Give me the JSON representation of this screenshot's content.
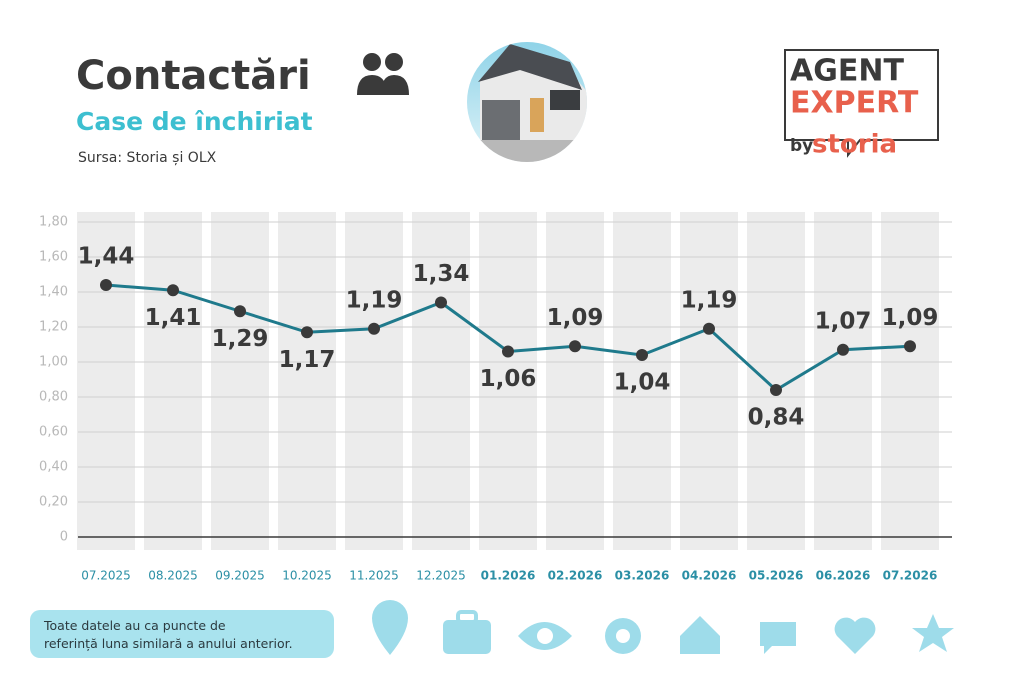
{
  "chart_data": {
    "type": "line",
    "title": "Contactări",
    "subtitle": "Case de închiriat",
    "source": "Sursa: Storia și OLX",
    "note": "Toate datele au ca puncte de referință luna similară a anului anterior.",
    "categories": [
      "07.2025",
      "08.2025",
      "09.2025",
      "10.2025",
      "11.2025",
      "12.2025",
      "01.2026",
      "02.2026",
      "03.2026",
      "04.2026",
      "05.2026",
      "06.2026",
      "07.2026"
    ],
    "series": [
      {
        "name": "Contactări",
        "color": "#1f7a8c",
        "values": [
          1.44,
          1.41,
          1.29,
          1.17,
          1.19,
          1.34,
          1.06,
          1.09,
          1.04,
          1.19,
          0.84,
          1.07,
          1.09
        ],
        "value_labels": [
          "1,44",
          "1,41",
          "1,29",
          "1,17",
          "1,19",
          "1,34",
          "1,06",
          "1,09",
          "1,04",
          "1,19",
          "0,84",
          "1,07",
          "1,09"
        ]
      }
    ],
    "ylim": [
      0,
      1.8
    ],
    "yticks": [
      0,
      {
        "value": 0.2,
        "label": "0,20"
      },
      {
        "value": 0.4,
        "label": "0,40"
      },
      {
        "value": 0.6,
        "label": "0,60"
      },
      {
        "value": 0.8,
        "label": "0,80"
      },
      {
        "value": 1.0,
        "label": "1,00"
      },
      {
        "value": 1.2,
        "label": "1,20"
      },
      {
        "value": 1.4,
        "label": "1,40"
      },
      {
        "value": 1.6,
        "label": "1,60"
      },
      {
        "value": 1.8,
        "label": "1,80"
      }
    ],
    "grid": true
  },
  "logo": {
    "line1": "AGENT",
    "line2": "EXPERT",
    "by": "by",
    "brand": "storia"
  }
}
